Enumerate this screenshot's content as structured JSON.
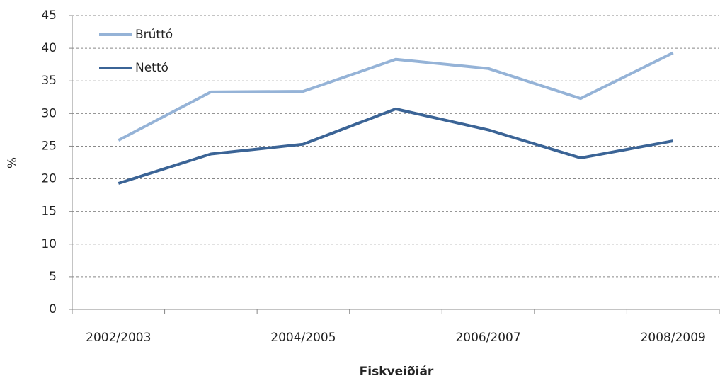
{
  "chart_data": {
    "type": "line",
    "x_label": "Fiskveiðiár",
    "y_label": "%",
    "categories": [
      "2002/2003",
      null,
      "2004/2005",
      null,
      "2006/2007",
      null,
      "2008/2009"
    ],
    "series": [
      {
        "name": "Brúttó",
        "color": "#95b3d7",
        "values": [
          25.9,
          33.3,
          33.4,
          38.3,
          36.9,
          32.3,
          39.3
        ]
      },
      {
        "name": "Nettó",
        "color": "#3b6496",
        "values": [
          19.3,
          23.8,
          25.3,
          30.7,
          27.5,
          23.2,
          25.8
        ]
      }
    ],
    "ylim": [
      0,
      45
    ],
    "yticks": [
      0,
      5,
      10,
      15,
      20,
      25,
      30,
      35,
      40,
      45
    ],
    "grid": true,
    "legend": "upper-left"
  }
}
